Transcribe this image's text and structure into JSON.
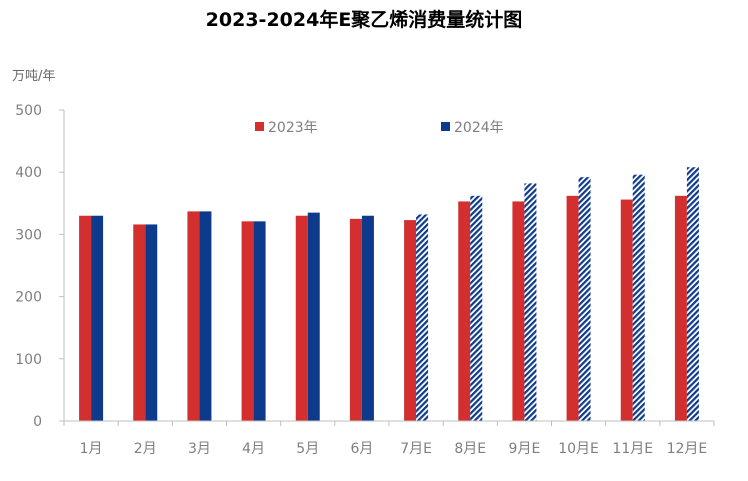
{
  "chart_data": {
    "type": "bar",
    "title": "2023-2024年E聚乙烯消费量统计图",
    "ylabel": "万吨/年",
    "xlabel": "",
    "ylim": [
      0,
      500
    ],
    "yticks": [
      "0",
      "100",
      "200",
      "300",
      "400",
      "500"
    ],
    "categories": [
      "1月",
      "2月",
      "3月",
      "4月",
      "5月",
      "6月",
      "7月E",
      "8月E",
      "9月E",
      "10月E",
      "11月E",
      "12月E"
    ],
    "series": [
      {
        "name": "2023年",
        "color": "#d32f2f",
        "values": [
          330,
          316,
          337,
          321,
          330,
          325,
          323,
          353,
          353,
          362,
          356,
          362
        ]
      },
      {
        "name": "2024年",
        "color": "#0d3a8a",
        "values": [
          330,
          316,
          337,
          321,
          335,
          330,
          332,
          362,
          382,
          392,
          396,
          408
        ],
        "estimated_from_index": 6
      }
    ],
    "legend_position": "top",
    "grid": false
  }
}
